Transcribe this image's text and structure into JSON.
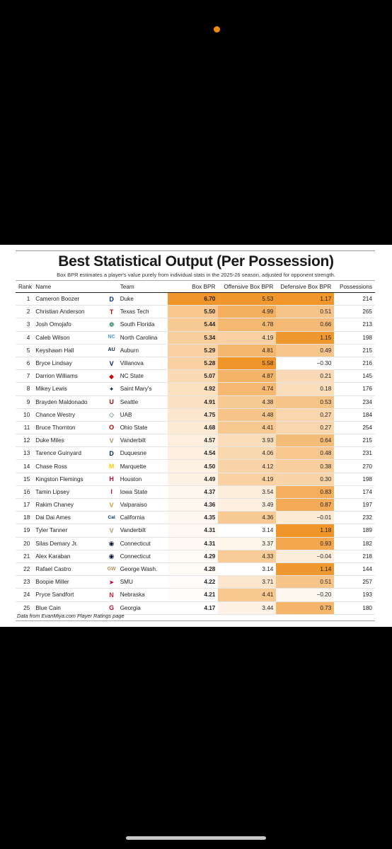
{
  "title": "Best Statistical Output (Per Possession)",
  "subtitle": "Box BPR estimates a player's value purely from individual stats in the 2025-26 season, adjusted for opponent strength.",
  "footer": "Data from EvanMiya.com Player Ratings page",
  "headers": {
    "rank": "Rank",
    "name": "Name",
    "team": "Team",
    "box": "Box BPR",
    "off": "Offensive Box BPR",
    "def": "Defensive Box BPR",
    "pos": "Possessions"
  },
  "colors": {
    "heat_high": "#f0952a",
    "heat_low": "#ffffff",
    "status_dot": "#f28a0c"
  },
  "rows": [
    {
      "rank": "1",
      "name": "Cameron Boozer",
      "logo": "D",
      "logo_color": "#003087",
      "team": "Duke",
      "box": "6.70",
      "off": "5.53",
      "def": "1.17",
      "pos": "214"
    },
    {
      "rank": "2",
      "name": "Christian Anderson",
      "logo": "T",
      "logo_color": "#cc0000",
      "team": "Texas Tech",
      "box": "5.50",
      "off": "4.99",
      "def": "0.51",
      "pos": "265"
    },
    {
      "rank": "3",
      "name": "Josh Omojafo",
      "logo": "❁",
      "logo_color": "#006747",
      "team": "South Florida",
      "box": "5.44",
      "off": "4.78",
      "def": "0.66",
      "pos": "213"
    },
    {
      "rank": "4",
      "name": "Caleb Wilson",
      "logo": "NC",
      "logo_color": "#4b9cd3",
      "team": "North Carolina",
      "box": "5.34",
      "off": "4.19",
      "def": "1.15",
      "pos": "198"
    },
    {
      "rank": "5",
      "name": "Keyshawn Hall",
      "logo": "AU",
      "logo_color": "#0c2340",
      "team": "Auburn",
      "box": "5.29",
      "off": "4.81",
      "def": "0.49",
      "pos": "215"
    },
    {
      "rank": "6",
      "name": "Bryce Lindsay",
      "logo": "V",
      "logo_color": "#00205b",
      "team": "Villanova",
      "box": "5.28",
      "off": "5.58",
      "def": "−0.30",
      "pos": "216"
    },
    {
      "rank": "7",
      "name": "Darrion Williams",
      "logo": "◆",
      "logo_color": "#cc0000",
      "team": "NC State",
      "box": "5.07",
      "off": "4.87",
      "def": "0.21",
      "pos": "145"
    },
    {
      "rank": "8",
      "name": "Mikey Lewis",
      "logo": "✦",
      "logo_color": "#06315b",
      "team": "Saint Mary's",
      "box": "4.92",
      "off": "4.74",
      "def": "0.18",
      "pos": "176"
    },
    {
      "rank": "9",
      "name": "Brayden Maldonado",
      "logo": "U",
      "logo_color": "#aa0000",
      "team": "Seattle",
      "box": "4.91",
      "off": "4.38",
      "def": "0.53",
      "pos": "234"
    },
    {
      "rank": "10",
      "name": "Chance Westry",
      "logo": "◇",
      "logo_color": "#1e6b52",
      "team": "UAB",
      "box": "4.75",
      "off": "4.48",
      "def": "0.27",
      "pos": "184"
    },
    {
      "rank": "11",
      "name": "Bruce Thornton",
      "logo": "O",
      "logo_color": "#bb0000",
      "team": "Ohio State",
      "box": "4.68",
      "off": "4.41",
      "def": "0.27",
      "pos": "254"
    },
    {
      "rank": "12",
      "name": "Duke Miles",
      "logo": "V",
      "logo_color": "#a8996e",
      "team": "Vanderbilt",
      "box": "4.57",
      "off": "3.93",
      "def": "0.64",
      "pos": "215"
    },
    {
      "rank": "13",
      "name": "Tarence Guinyard",
      "logo": "D",
      "logo_color": "#002d62",
      "team": "Duquesne",
      "box": "4.54",
      "off": "4.06",
      "def": "0.48",
      "pos": "231"
    },
    {
      "rank": "14",
      "name": "Chase Ross",
      "logo": "M",
      "logo_color": "#ffcc00",
      "team": "Marquette",
      "box": "4.50",
      "off": "4.12",
      "def": "0.38",
      "pos": "270"
    },
    {
      "rank": "15",
      "name": "Kingston Flemings",
      "logo": "H",
      "logo_color": "#c8102e",
      "team": "Houston",
      "box": "4.49",
      "off": "4.19",
      "def": "0.30",
      "pos": "198"
    },
    {
      "rank": "16",
      "name": "Tamin Lipsey",
      "logo": "I",
      "logo_color": "#c8102e",
      "team": "Iowa State",
      "box": "4.37",
      "off": "3.54",
      "def": "0.83",
      "pos": "174"
    },
    {
      "rank": "17",
      "name": "Rakim Chaney",
      "logo": "V",
      "logo_color": "#c9a227",
      "team": "Valparaiso",
      "box": "4.36",
      "off": "3.49",
      "def": "0.87",
      "pos": "197"
    },
    {
      "rank": "18",
      "name": "Dai Dai Ames",
      "logo": "Cal",
      "logo_color": "#003262",
      "team": "California",
      "box": "4.35",
      "off": "4.36",
      "def": "−0.01",
      "pos": "232"
    },
    {
      "rank": "19",
      "name": "Tyler Tanner",
      "logo": "V",
      "logo_color": "#a8996e",
      "team": "Vanderbilt",
      "box": "4.31",
      "off": "3.14",
      "def": "1.18",
      "pos": "189"
    },
    {
      "rank": "20",
      "name": "Silas Demary Jr.",
      "logo": "◉",
      "logo_color": "#000e2f",
      "team": "Connecticut",
      "box": "4.31",
      "off": "3.37",
      "def": "0.93",
      "pos": "182"
    },
    {
      "rank": "21",
      "name": "Alex Karaban",
      "logo": "◉",
      "logo_color": "#000e2f",
      "team": "Connecticut",
      "box": "4.29",
      "off": "4.33",
      "def": "−0.04",
      "pos": "218"
    },
    {
      "rank": "22",
      "name": "Rafael Castro",
      "logo": "GW",
      "logo_color": "#b08d57",
      "team": "George Wash.",
      "box": "4.28",
      "off": "3.14",
      "def": "1.14",
      "pos": "144"
    },
    {
      "rank": "23",
      "name": "Boopie Miller",
      "logo": "➤",
      "logo_color": "#cc0035",
      "team": "SMU",
      "box": "4.22",
      "off": "3.71",
      "def": "0.51",
      "pos": "257"
    },
    {
      "rank": "24",
      "name": "Pryce Sandfort",
      "logo": "N",
      "logo_color": "#e41c38",
      "team": "Nebraska",
      "box": "4.21",
      "off": "4.41",
      "def": "−0.20",
      "pos": "193"
    },
    {
      "rank": "25",
      "name": "Blue Cain",
      "logo": "G",
      "logo_color": "#ba0c2f",
      "team": "Georgia",
      "box": "4.17",
      "off": "3.44",
      "def": "0.73",
      "pos": "180"
    }
  ]
}
